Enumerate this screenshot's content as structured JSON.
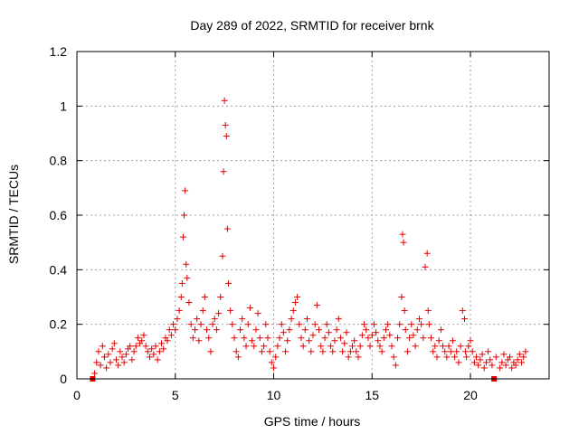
{
  "chart_data": {
    "type": "scatter",
    "title": "Day 289 of 2022, SRMTID for receiver brnk",
    "xlabel": "GPS time / hours",
    "ylabel": "SRMTID / TECUs",
    "xlim": [
      0,
      24
    ],
    "ylim": [
      0,
      1.2
    ],
    "xticks": [
      0,
      5,
      10,
      15,
      20
    ],
    "yticks": [
      0,
      0.2,
      0.4,
      0.6,
      0.8,
      1,
      1.2
    ],
    "xtick_labels": [
      "0",
      "5",
      "10",
      "15",
      "20"
    ],
    "ytick_labels": [
      "0",
      "0.2",
      "0.4",
      "0.6",
      "0.8",
      "1",
      "1.2"
    ],
    "grid": true,
    "marker": "+",
    "series_color": "#e00000",
    "series": [
      {
        "name": "SRMTID",
        "x": [
          0.9,
          1.0,
          1.1,
          1.2,
          1.3,
          1.4,
          1.5,
          1.6,
          1.7,
          1.8,
          1.9,
          2.0,
          2.1,
          2.2,
          2.3,
          2.4,
          2.5,
          2.6,
          2.7,
          2.8,
          2.9,
          3.0,
          3.1,
          3.2,
          3.3,
          3.4,
          3.5,
          3.6,
          3.7,
          3.8,
          3.9,
          4.0,
          4.1,
          4.2,
          4.3,
          4.4,
          4.5,
          4.6,
          4.7,
          4.8,
          4.9,
          5.0,
          5.1,
          5.2,
          5.3,
          5.35,
          5.4,
          5.45,
          5.5,
          5.55,
          5.6,
          5.7,
          5.8,
          5.9,
          6.0,
          6.1,
          6.2,
          6.3,
          6.4,
          6.5,
          6.6,
          6.7,
          6.8,
          6.9,
          7.0,
          7.1,
          7.2,
          7.3,
          7.4,
          7.45,
          7.5,
          7.55,
          7.6,
          7.65,
          7.7,
          7.8,
          7.9,
          8.0,
          8.1,
          8.2,
          8.3,
          8.4,
          8.5,
          8.6,
          8.7,
          8.8,
          8.9,
          9.0,
          9.1,
          9.2,
          9.3,
          9.4,
          9.5,
          9.6,
          9.7,
          9.8,
          9.9,
          10.0,
          10.1,
          10.2,
          10.3,
          10.4,
          10.5,
          10.6,
          10.7,
          10.8,
          10.9,
          11.0,
          11.1,
          11.2,
          11.3,
          11.4,
          11.5,
          11.6,
          11.7,
          11.8,
          11.9,
          12.0,
          12.1,
          12.2,
          12.3,
          12.4,
          12.5,
          12.6,
          12.7,
          12.8,
          12.9,
          13.0,
          13.1,
          13.2,
          13.3,
          13.4,
          13.5,
          13.6,
          13.7,
          13.8,
          13.9,
          14.0,
          14.1,
          14.2,
          14.3,
          14.4,
          14.5,
          14.6,
          14.7,
          14.8,
          14.9,
          15.0,
          15.1,
          15.2,
          15.3,
          15.4,
          15.5,
          15.6,
          15.7,
          15.8,
          15.9,
          16.0,
          16.1,
          16.2,
          16.3,
          16.4,
          16.5,
          16.55,
          16.6,
          16.65,
          16.7,
          16.8,
          16.9,
          17.0,
          17.1,
          17.2,
          17.3,
          17.4,
          17.5,
          17.6,
          17.7,
          17.8,
          17.85,
          17.9,
          18.0,
          18.1,
          18.2,
          18.3,
          18.4,
          18.5,
          18.6,
          18.7,
          18.8,
          18.9,
          19.0,
          19.1,
          19.2,
          19.3,
          19.4,
          19.5,
          19.6,
          19.7,
          19.75,
          19.8,
          19.9,
          20.0,
          20.1,
          20.2,
          20.3,
          20.4,
          20.5,
          20.6,
          20.7,
          20.8,
          20.9,
          21.0,
          21.1,
          21.3,
          21.5,
          21.6,
          21.7,
          21.8,
          21.9,
          22.0,
          22.1,
          22.2,
          22.3,
          22.4,
          22.5,
          22.6,
          22.7,
          22.8
        ],
        "y": [
          0.02,
          0.06,
          0.1,
          0.05,
          0.12,
          0.08,
          0.04,
          0.09,
          0.06,
          0.11,
          0.13,
          0.07,
          0.05,
          0.1,
          0.08,
          0.06,
          0.09,
          0.11,
          0.12,
          0.07,
          0.1,
          0.12,
          0.15,
          0.13,
          0.14,
          0.16,
          0.12,
          0.1,
          0.08,
          0.11,
          0.09,
          0.12,
          0.07,
          0.1,
          0.13,
          0.11,
          0.15,
          0.14,
          0.18,
          0.16,
          0.2,
          0.18,
          0.22,
          0.25,
          0.3,
          0.35,
          0.52,
          0.6,
          0.69,
          0.42,
          0.37,
          0.28,
          0.2,
          0.15,
          0.18,
          0.22,
          0.14,
          0.2,
          0.25,
          0.3,
          0.18,
          0.15,
          0.1,
          0.2,
          0.22,
          0.18,
          0.24,
          0.3,
          0.45,
          0.76,
          1.02,
          0.93,
          0.89,
          0.55,
          0.35,
          0.25,
          0.2,
          0.15,
          0.1,
          0.08,
          0.18,
          0.22,
          0.15,
          0.12,
          0.2,
          0.26,
          0.14,
          0.12,
          0.18,
          0.24,
          0.15,
          0.1,
          0.12,
          0.2,
          0.15,
          0.1,
          0.06,
          0.04,
          0.08,
          0.12,
          0.15,
          0.2,
          0.17,
          0.1,
          0.14,
          0.18,
          0.22,
          0.25,
          0.28,
          0.3,
          0.2,
          0.15,
          0.12,
          0.18,
          0.22,
          0.14,
          0.1,
          0.16,
          0.2,
          0.27,
          0.18,
          0.12,
          0.1,
          0.15,
          0.2,
          0.17,
          0.12,
          0.1,
          0.14,
          0.18,
          0.22,
          0.15,
          0.1,
          0.13,
          0.17,
          0.08,
          0.1,
          0.12,
          0.14,
          0.1,
          0.08,
          0.12,
          0.16,
          0.2,
          0.18,
          0.15,
          0.12,
          0.16,
          0.2,
          0.17,
          0.14,
          0.12,
          0.1,
          0.15,
          0.18,
          0.2,
          0.16,
          0.12,
          0.08,
          0.05,
          0.15,
          0.2,
          0.3,
          0.53,
          0.5,
          0.25,
          0.18,
          0.1,
          0.15,
          0.2,
          0.16,
          0.12,
          0.18,
          0.22,
          0.2,
          0.15,
          0.41,
          0.46,
          0.25,
          0.2,
          0.15,
          0.1,
          0.12,
          0.08,
          0.14,
          0.18,
          0.12,
          0.1,
          0.08,
          0.12,
          0.1,
          0.14,
          0.08,
          0.1,
          0.06,
          0.12,
          0.25,
          0.22,
          0.1,
          0.08,
          0.12,
          0.14,
          0.1,
          0.06,
          0.08,
          0.05,
          0.07,
          0.09,
          0.04,
          0.06,
          0.1,
          0.07,
          0.05,
          0.08,
          0.04,
          0.06,
          0.09,
          0.05,
          0.07,
          0.08,
          0.04,
          0.06,
          0.05,
          0.07,
          0.09,
          0.06,
          0.08,
          0.1
        ],
        "markers_square": [
          {
            "x": 0.8,
            "y": 0.0
          },
          {
            "x": 21.2,
            "y": 0.0
          }
        ]
      }
    ]
  }
}
